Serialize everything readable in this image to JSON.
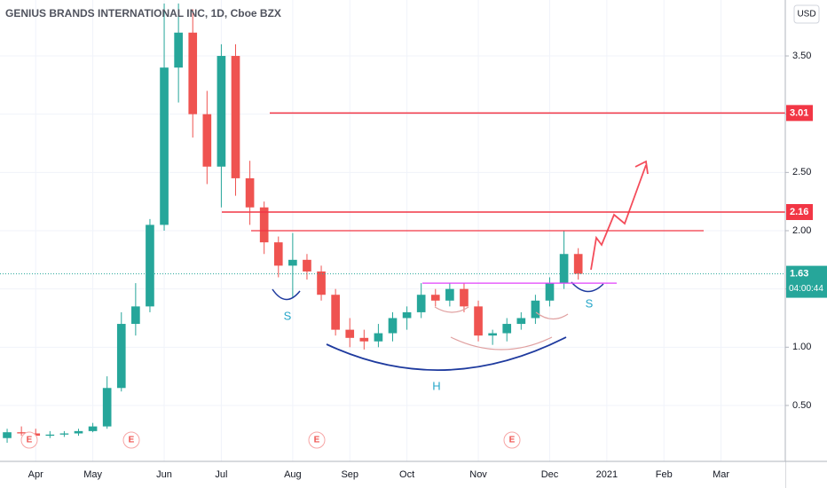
{
  "chart_data": {
    "type": "candlestick",
    "title": "GENIUS BRANDS INTERNATIONAL INC, 1D, Cboe BZX",
    "currency": "USD",
    "categories": [
      null,
      null,
      "Apr",
      null,
      null,
      null,
      "May",
      null,
      null,
      null,
      null,
      "Jun",
      null,
      null,
      null,
      "Jul",
      null,
      null,
      null,
      null,
      "Aug",
      null,
      null,
      null,
      "Sep",
      null,
      null,
      null,
      "Oct",
      null,
      null,
      null,
      null,
      "Nov",
      null,
      null,
      null,
      null,
      "Dec",
      null,
      null,
      null,
      "2021",
      null,
      null,
      null,
      "Feb",
      null,
      null,
      null,
      "Mar",
      null,
      null,
      null,
      null
    ],
    "open": [
      0.22,
      0.27,
      0.26,
      0.24,
      0.25,
      0.26,
      0.28,
      0.32,
      0.65,
      1.2,
      1.35,
      2.05,
      3.4,
      3.7,
      3.0,
      2.55,
      3.5,
      2.45,
      2.2,
      1.9,
      1.7,
      1.75,
      1.65,
      1.45,
      1.15,
      1.08,
      1.05,
      1.12,
      1.25,
      1.3,
      1.45,
      1.4,
      1.5,
      1.35,
      1.1,
      1.12,
      1.2,
      1.25,
      1.4,
      1.55,
      1.8,
      null,
      null,
      null,
      null,
      null,
      null,
      null,
      null,
      null,
      null,
      null,
      null,
      null,
      null
    ],
    "high": [
      0.3,
      0.32,
      0.3,
      0.28,
      0.28,
      0.3,
      0.35,
      0.75,
      1.3,
      1.55,
      2.1,
      3.95,
      3.95,
      3.9,
      3.2,
      3.6,
      3.6,
      2.6,
      2.25,
      1.95,
      1.98,
      1.8,
      1.7,
      1.5,
      1.25,
      1.15,
      1.2,
      1.3,
      1.35,
      1.55,
      1.5,
      1.55,
      1.55,
      1.4,
      1.15,
      1.25,
      1.3,
      1.45,
      1.6,
      2.0,
      1.85,
      null,
      null,
      null,
      null,
      null,
      null,
      null,
      null,
      null,
      null,
      null,
      null,
      null,
      null
    ],
    "low": [
      0.18,
      0.24,
      0.22,
      0.22,
      0.23,
      0.24,
      0.27,
      0.3,
      0.62,
      1.1,
      1.3,
      2.0,
      3.1,
      2.8,
      2.4,
      2.2,
      2.3,
      2.05,
      1.8,
      1.6,
      1.42,
      1.58,
      1.4,
      1.1,
      1.0,
      0.98,
      1.0,
      1.05,
      1.15,
      1.25,
      1.35,
      1.35,
      1.3,
      1.05,
      1.02,
      1.05,
      1.15,
      1.2,
      1.35,
      1.5,
      1.58,
      null,
      null,
      null,
      null,
      null,
      null,
      null,
      null,
      null,
      null,
      null,
      null,
      null,
      null
    ],
    "close": [
      0.27,
      0.26,
      0.24,
      0.25,
      0.26,
      0.28,
      0.32,
      0.65,
      1.2,
      1.35,
      2.05,
      3.4,
      3.7,
      3.0,
      2.55,
      3.5,
      2.45,
      2.2,
      1.9,
      1.7,
      1.75,
      1.65,
      1.45,
      1.15,
      1.08,
      1.05,
      1.12,
      1.25,
      1.3,
      1.45,
      1.4,
      1.5,
      1.35,
      1.1,
      1.12,
      1.2,
      1.25,
      1.4,
      1.55,
      1.8,
      1.63,
      null,
      null,
      null,
      null,
      null,
      null,
      null,
      null,
      null,
      null,
      null,
      null,
      null,
      null
    ],
    "up_color": "#26a69a",
    "down_color": "#ef5350",
    "ylim": [
      0.02,
      3.98
    ],
    "yticks": [
      {
        "value": 0.5,
        "label": "0.50"
      },
      {
        "value": 1.0,
        "label": "1.00"
      },
      {
        "value": 1.5,
        "label": "1.50"
      },
      {
        "value": 2.0,
        "label": "2.00"
      },
      {
        "value": 2.5,
        "label": "2.50"
      },
      {
        "value": 3.0,
        "label": "3.00"
      },
      {
        "value": 3.5,
        "label": "3.50"
      }
    ],
    "grid": true,
    "price_levels": [
      {
        "value": 3.01,
        "color": "#f23645"
      },
      {
        "value": 2.16,
        "color": "#f23645"
      }
    ],
    "lines": [
      {
        "value": 2.0,
        "color": "#f23645"
      },
      {
        "value": 1.55,
        "color": "#e040fb"
      }
    ],
    "last_price": 1.63,
    "last_price_color": "#26a69a",
    "countdown": "04:00:44",
    "pattern_labels": [
      "S",
      "H",
      "S"
    ],
    "earnings_markers": [
      "E",
      "E",
      "E",
      "E"
    ]
  }
}
